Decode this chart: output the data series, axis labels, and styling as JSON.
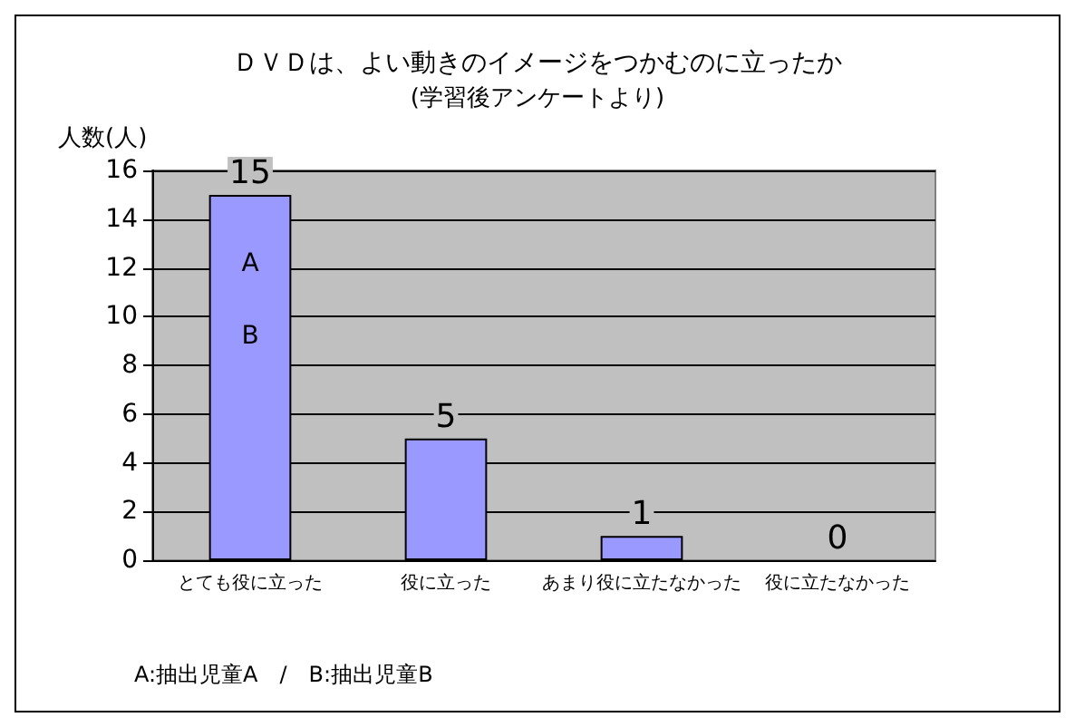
{
  "chart_data": {
    "type": "bar",
    "title": "ＤＶＤは、よい動きのイメージをつかむのに立ったか",
    "subtitle": "(学習後アンケートより)",
    "ylabel": "人数(人)",
    "categories": [
      "とても役に立った",
      "役に立った",
      "あまり役に立たなかった",
      "役に立たなかった"
    ],
    "values": [
      15,
      5,
      1,
      0
    ],
    "color": "#9999ff",
    "ylim": [
      0,
      16
    ],
    "yticks": [
      0,
      2,
      4,
      6,
      8,
      10,
      12,
      14,
      16
    ],
    "grid": "y",
    "data_labels": true,
    "annotations": [
      "A",
      "B",
      "A:抽出児童A　/　B:抽出児童B"
    ]
  }
}
